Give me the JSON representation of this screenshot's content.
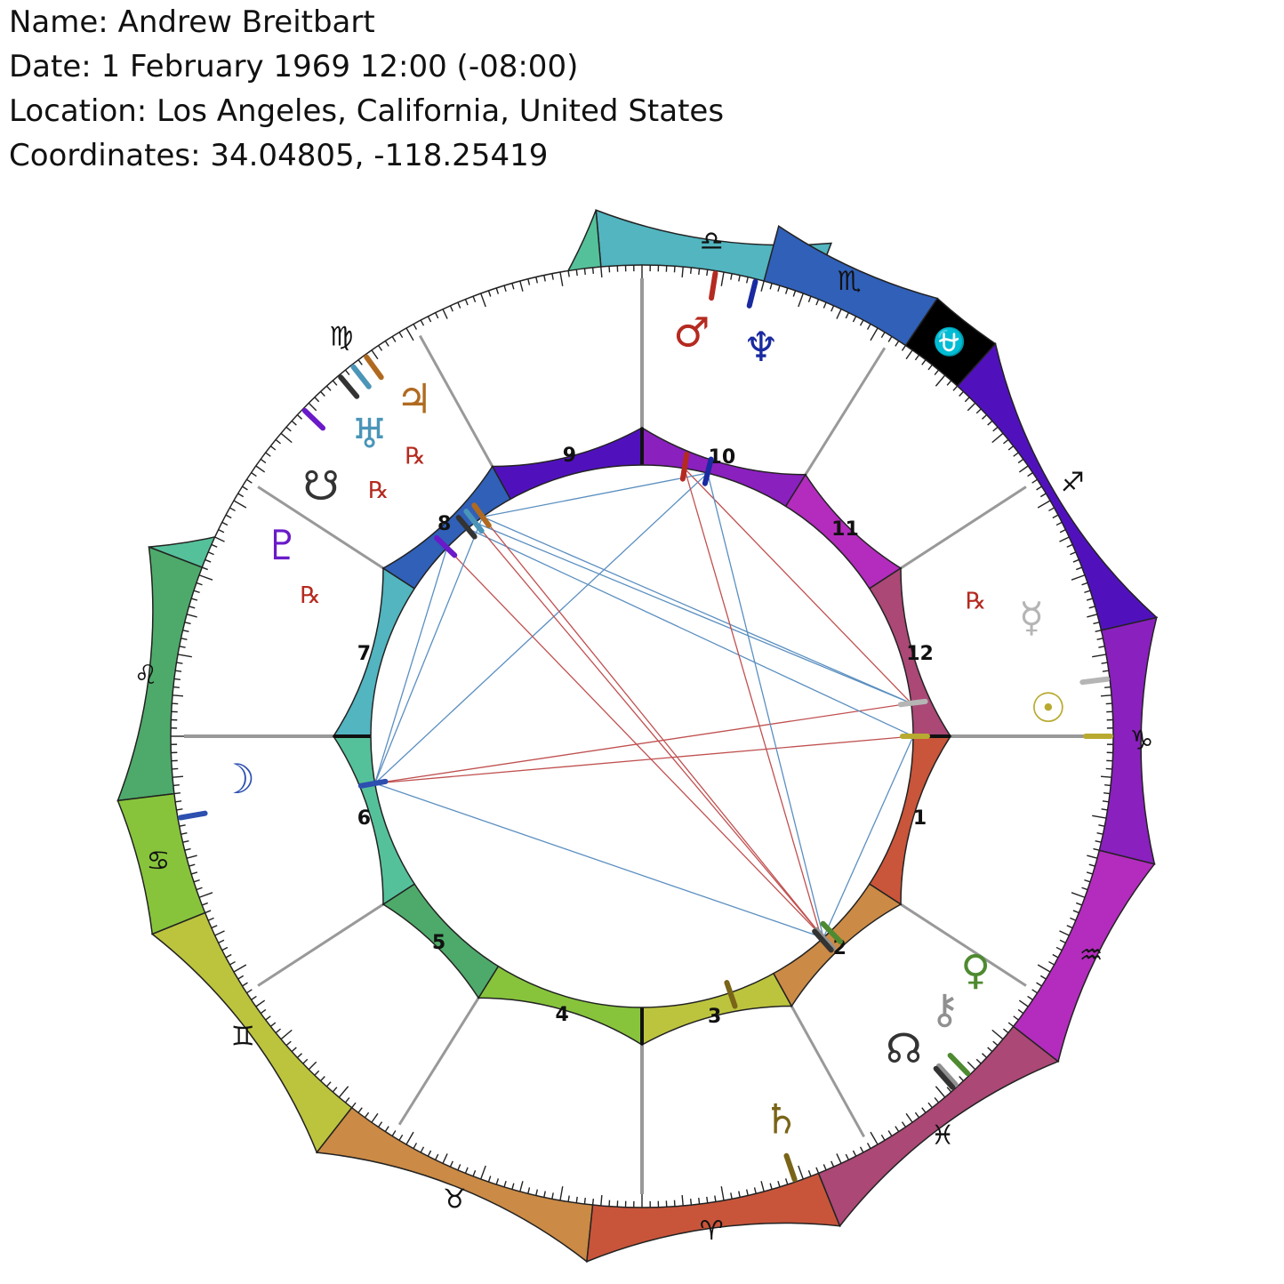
{
  "header": {
    "name": "Name: Andrew Breitbart",
    "date": "Date: 1 February 1969 12:00 (-08:00)",
    "location": "Location: Los Angeles, California, United States",
    "coordinates": "Coordinates: 34.04805, -118.25419"
  },
  "zodiac": [
    {
      "id": "libra",
      "glyph": "♎",
      "color": "#52b5c0",
      "start": 85,
      "end": 111
    },
    {
      "id": "virgo",
      "glyph": "♍",
      "color": "#55c19a",
      "start": 21,
      "end": 85
    },
    {
      "id": "leo",
      "glyph": "♌",
      "color": "#4eaa6a",
      "start": -7,
      "end": 21
    },
    {
      "id": "cancer",
      "glyph": "♋",
      "color": "#87c43c",
      "start": -22,
      "end": -7
    },
    {
      "id": "gemini",
      "glyph": "♊",
      "color": "#bcc43e",
      "start": -52,
      "end": -22
    },
    {
      "id": "taurus",
      "glyph": "♉",
      "color": "#cb8a45",
      "start": -84,
      "end": -52
    },
    {
      "id": "aries",
      "glyph": "♈",
      "color": "#c8553a",
      "start": -112,
      "end": -84
    },
    {
      "id": "pisces",
      "glyph": "♓",
      "color": "#ab4875",
      "start": -142,
      "end": -112
    },
    {
      "id": "aquarius",
      "glyph": "♒",
      "color": "#b32cbd",
      "start": -166,
      "end": -142
    },
    {
      "id": "capricorn",
      "glyph": "♑",
      "color": "#8a20be",
      "start": -193,
      "end": -166
    },
    {
      "id": "sagittarius",
      "glyph": "♐",
      "color": "#5011bd",
      "start": -228,
      "end": -193
    },
    {
      "id": "ophiuchus",
      "glyph": "⛎",
      "color": "#000000",
      "start": -236,
      "end": -228
    },
    {
      "id": "scorpio",
      "glyph": "♏",
      "color": "#3060b8",
      "start": -255,
      "end": -236
    }
  ],
  "houses": [
    {
      "label": "1",
      "color": "#c9553a",
      "start": 180,
      "end": 213
    },
    {
      "label": "2",
      "color": "#cb8a45",
      "start": 213,
      "end": 241
    },
    {
      "label": "3",
      "color": "#bcc43e",
      "start": 241,
      "end": 270
    },
    {
      "label": "4",
      "color": "#87c43c",
      "start": 270,
      "end": 302
    },
    {
      "label": "5",
      "color": "#4eaa6a",
      "start": 302,
      "end": 327
    },
    {
      "label": "6",
      "color": "#55c19a",
      "start": 327,
      "end": 360
    },
    {
      "label": "7",
      "color": "#52b5c0",
      "start": 0,
      "end": 33
    },
    {
      "label": "8",
      "color": "#3060b8",
      "start": 33,
      "end": 61
    },
    {
      "label": "9",
      "color": "#5011bd",
      "start": 61,
      "end": 90
    },
    {
      "label": "10",
      "color": "#8a20be",
      "start": 90,
      "end": 122
    },
    {
      "label": "11",
      "color": "#b32cbd",
      "start": 122,
      "end": 147
    },
    {
      "label": "12",
      "color": "#ab4875",
      "start": 147,
      "end": 180
    }
  ],
  "planets": [
    {
      "id": "sun",
      "glyph": "☉",
      "color": "#b8aa30",
      "lon": 180,
      "ga": 176,
      "retro": false
    },
    {
      "id": "mercury",
      "glyph": "☿",
      "color": "#b5b5b5",
      "lon": 173,
      "ga": 163,
      "retro": true
    },
    {
      "id": "venus",
      "glyph": "♀",
      "color": "#4e8a30",
      "lon": 226,
      "ga": 215,
      "retro": false
    },
    {
      "id": "chiron",
      "glyph": "⚷",
      "color": "#909090",
      "lon": 228,
      "ga": 222,
      "retro": false
    },
    {
      "id": "north-node",
      "glyph": "☊",
      "color": "#333333",
      "lon": 228.5,
      "ga": 230,
      "retro": false
    },
    {
      "id": "saturn",
      "glyph": "♄",
      "color": "#7a6418",
      "lon": 251,
      "ga": 250,
      "retro": false
    },
    {
      "id": "moon",
      "glyph": "☽",
      "color": "#2c4fb0",
      "lon": 350,
      "ga": 354,
      "retro": false
    },
    {
      "id": "pluto",
      "glyph": "♇",
      "color": "#6a1ac8",
      "lon": 44,
      "ga": 28,
      "retro": true
    },
    {
      "id": "south-node",
      "glyph": "☋",
      "color": "#333333",
      "lon": 50,
      "ga": 38,
      "retro": false
    },
    {
      "id": "uranus",
      "glyph": "♅",
      "color": "#4a95b8",
      "lon": 52,
      "ga": 48,
      "retro": true
    },
    {
      "id": "jupiter",
      "glyph": "♃",
      "color": "#b06a20",
      "lon": 54,
      "ga": 56,
      "retro": true
    },
    {
      "id": "mars",
      "glyph": "♂",
      "color": "#b52a20",
      "lon": 99,
      "ga": 97,
      "retro": false
    },
    {
      "id": "neptune",
      "glyph": "♆",
      "color": "#1a2aa0",
      "lon": 104,
      "ga": 107,
      "retro": false
    }
  ],
  "retrograde_label": "℞",
  "aspects": [
    {
      "a": "mercury",
      "b": "uranus",
      "color": "#5b8fc0"
    },
    {
      "a": "mercury",
      "b": "jupiter",
      "color": "#5b8fc0"
    },
    {
      "a": "mercury",
      "b": "moon",
      "color": "#c05050"
    },
    {
      "a": "mercury",
      "b": "mars",
      "color": "#c05050"
    },
    {
      "a": "sun",
      "b": "moon",
      "color": "#c05050"
    },
    {
      "a": "sun",
      "b": "south-node",
      "color": "#5b8fc0"
    },
    {
      "a": "neptune",
      "b": "moon",
      "color": "#5b8fc0"
    },
    {
      "a": "neptune",
      "b": "jupiter",
      "color": "#5b8fc0"
    },
    {
      "a": "neptune",
      "b": "chiron",
      "color": "#5b8fc0"
    },
    {
      "a": "chiron",
      "b": "jupiter",
      "color": "#c05050"
    },
    {
      "a": "chiron",
      "b": "uranus",
      "color": "#c05050"
    },
    {
      "a": "chiron",
      "b": "pluto",
      "color": "#c05050"
    },
    {
      "a": "chiron",
      "b": "moon",
      "color": "#5b8fc0"
    },
    {
      "a": "chiron",
      "b": "sun",
      "color": "#5b8fc0"
    },
    {
      "a": "moon",
      "b": "pluto",
      "color": "#5b8fc0"
    },
    {
      "a": "moon",
      "b": "jupiter",
      "color": "#5b8fc0"
    },
    {
      "a": "mars",
      "b": "north-node",
      "color": "#c05050"
    }
  ]
}
